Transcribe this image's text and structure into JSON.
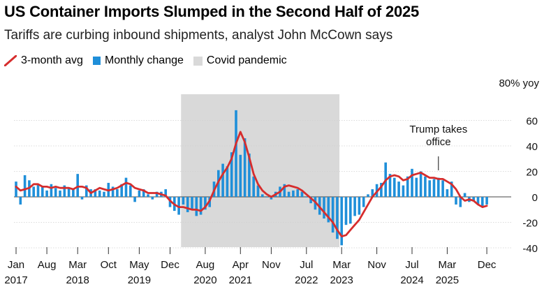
{
  "colors": {
    "bar": "#1f8fd9",
    "line": "#d62d2d",
    "shade": "#d9d9d9",
    "grid": "#d0d0d0"
  },
  "chart_data": {
    "type": "bar",
    "title": "US Container Imports Slumped in the Second Half of 2025",
    "subtitle": "Tariffs are curbing inbound shipments, analyst John McCown says",
    "ylabel": "80% yoy",
    "ylim": [
      -45,
      80
    ],
    "yticks": [
      60,
      40,
      20,
      0,
      -20,
      -40
    ],
    "x_start": "2017-01",
    "legend": [
      {
        "key": "line",
        "label": "3-month avg"
      },
      {
        "key": "bar",
        "label": "Monthly change"
      },
      {
        "key": "shade",
        "label": "Covid pandemic"
      }
    ],
    "shaded_period": {
      "label": "Covid pandemic",
      "start_index": 38,
      "end_index": 74
    },
    "xticks": [
      {
        "index": 0,
        "month": "Jan",
        "year": "2017"
      },
      {
        "index": 7,
        "month": "Aug",
        "year": ""
      },
      {
        "index": 14,
        "month": "Mar",
        "year": "2018"
      },
      {
        "index": 21,
        "month": "Oct",
        "year": ""
      },
      {
        "index": 28,
        "month": "May",
        "year": "2019"
      },
      {
        "index": 35,
        "month": "Dec",
        "year": ""
      },
      {
        "index": 43,
        "month": "Aug",
        "year": "2020"
      },
      {
        "index": 51,
        "month": "Apr",
        "year": "2021"
      },
      {
        "index": 58,
        "month": "Nov",
        "year": ""
      },
      {
        "index": 66,
        "month": "Jul",
        "year": "2022"
      },
      {
        "index": 74,
        "month": "Mar",
        "year": "2023"
      },
      {
        "index": 82,
        "month": "Nov",
        "year": ""
      },
      {
        "index": 90,
        "month": "Jul",
        "year": "2024"
      },
      {
        "index": 98,
        "month": "Mar",
        "year": "2025"
      },
      {
        "index": 107,
        "month": "Dec",
        "year": ""
      }
    ],
    "annotation": {
      "lines": [
        "Trump takes",
        "office"
      ],
      "index": 96
    },
    "series": [
      {
        "name": "Monthly change",
        "values": [
          12,
          -6,
          17,
          13,
          8,
          10,
          8,
          5,
          10,
          7,
          5,
          9,
          7,
          6,
          18,
          -2,
          9,
          6,
          6,
          5,
          4,
          11,
          8,
          6,
          10,
          15,
          9,
          -4,
          5,
          6,
          2,
          -2,
          4,
          4,
          6,
          -8,
          -11,
          -14,
          -6,
          -12,
          -10,
          -15,
          -14,
          -10,
          -8,
          12,
          21,
          26,
          24,
          35,
          68,
          33,
          46,
          34,
          16,
          9,
          2,
          0,
          -2,
          4,
          8,
          10,
          4,
          5,
          6,
          4,
          0,
          -5,
          -10,
          -14,
          -17,
          -20,
          -28,
          -33,
          -38,
          -22,
          -21,
          -15,
          -14,
          -8,
          2,
          6,
          10,
          11,
          27,
          18,
          15,
          12,
          9,
          16,
          22,
          15,
          20,
          16,
          13,
          14,
          15,
          13,
          6,
          12,
          -6,
          -8,
          3,
          -4,
          -3,
          -6,
          -8,
          -6
        ]
      },
      {
        "name": "3-month avg",
        "values": [
          8,
          5,
          6,
          7,
          10,
          10,
          8,
          8,
          7,
          8,
          7,
          7,
          7,
          6,
          8,
          8,
          7,
          3,
          5,
          7,
          6,
          5,
          6,
          7,
          9,
          11,
          10,
          7,
          6,
          5,
          3,
          3,
          3,
          2,
          1,
          -3,
          -6,
          -8,
          -8,
          -9,
          -10,
          -10,
          -11,
          -8,
          -3,
          5,
          12,
          18,
          23,
          30,
          42,
          51,
          43,
          31,
          18,
          10,
          5,
          2,
          0,
          2,
          4,
          8,
          9,
          8,
          7,
          5,
          2,
          -1,
          -4,
          -8,
          -12,
          -16,
          -20,
          -26,
          -31,
          -30,
          -26,
          -22,
          -18,
          -12,
          -6,
          0,
          4,
          8,
          13,
          16,
          17,
          16,
          13,
          14,
          17,
          18,
          19,
          17,
          15,
          15,
          14,
          14,
          12,
          10,
          6,
          0,
          -3,
          -2,
          -3,
          -6,
          -8,
          -7
        ]
      }
    ]
  }
}
